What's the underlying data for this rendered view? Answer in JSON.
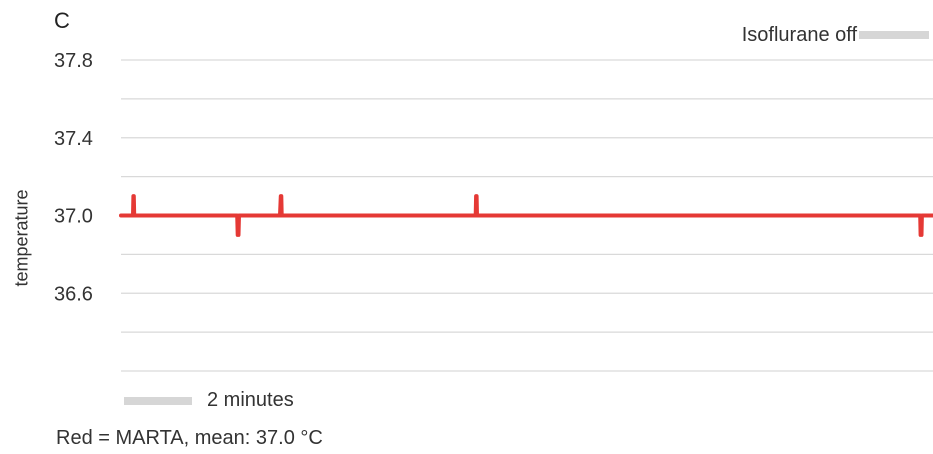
{
  "panel_label": "C",
  "caption": "Red = MARTA, mean: 37.0 °C",
  "chart_data": {
    "type": "line",
    "ylabel": "temperature",
    "ylim": [
      36.2,
      37.8
    ],
    "yticks": [
      36.6,
      37.0,
      37.4,
      37.8
    ],
    "ytick_labels": [
      "36.6",
      "37.0",
      "37.4",
      "37.8"
    ],
    "grid": true,
    "legend": {
      "label": "Isoflurane off",
      "color": "#d6d6d6",
      "placement": "top-right"
    },
    "scale_bar": {
      "label": "2 minutes"
    },
    "series": [
      {
        "color": "#e53935",
        "x": [
          0,
          0.14,
          0.145,
          0.15,
          0.155,
          0.165,
          1.36,
          1.365,
          1.375,
          1.38,
          1.385,
          1.39,
          1.86,
          1.87,
          1.875,
          1.88,
          1.885,
          1.89,
          4.15,
          4.155,
          4.16,
          4.165,
          4.175,
          9.35,
          9.355,
          9.365,
          9.37,
          9.375,
          9.38,
          9.5
        ],
        "y": [
          37.0,
          37.0,
          37.1,
          37.1,
          37.0,
          37.0,
          37.0,
          36.9,
          36.9,
          37.0,
          37.0,
          37.0,
          37.0,
          37.1,
          37.1,
          37.0,
          37.0,
          37.0,
          37.0,
          37.1,
          37.1,
          37.0,
          37.0,
          37.0,
          36.9,
          36.9,
          37.0,
          37.0,
          37.0,
          37.0
        ],
        "xlim": [
          0,
          9.5
        ]
      }
    ]
  }
}
